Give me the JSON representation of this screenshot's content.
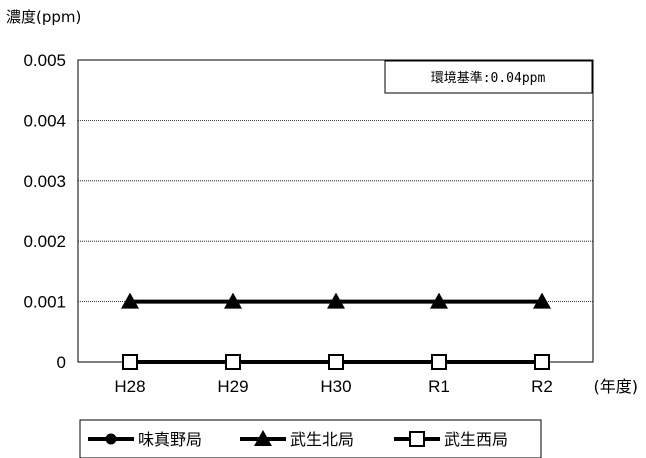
{
  "chart_data": {
    "type": "line",
    "ylabel": "濃度(ppm)",
    "xlabel": "(年度)",
    "categories": [
      "H28",
      "H29",
      "H30",
      "R1",
      "R2"
    ],
    "ylim": [
      0,
      0.005
    ],
    "yticks": [
      "0",
      "0.001",
      "0.002",
      "0.003",
      "0.004",
      "0.005"
    ],
    "grid": true,
    "annotation": "環境基準:0.04ppm",
    "legend_position": "bottom",
    "series": [
      {
        "name": "味真野局",
        "marker": "circle",
        "values": [
          0,
          0,
          0,
          0,
          0
        ]
      },
      {
        "name": "武生北局",
        "marker": "triangle",
        "values": [
          0.001,
          0.001,
          0.001,
          0.001,
          0.001
        ]
      },
      {
        "name": "武生西局",
        "marker": "square",
        "values": [
          0,
          0,
          0,
          0,
          0
        ]
      }
    ]
  }
}
